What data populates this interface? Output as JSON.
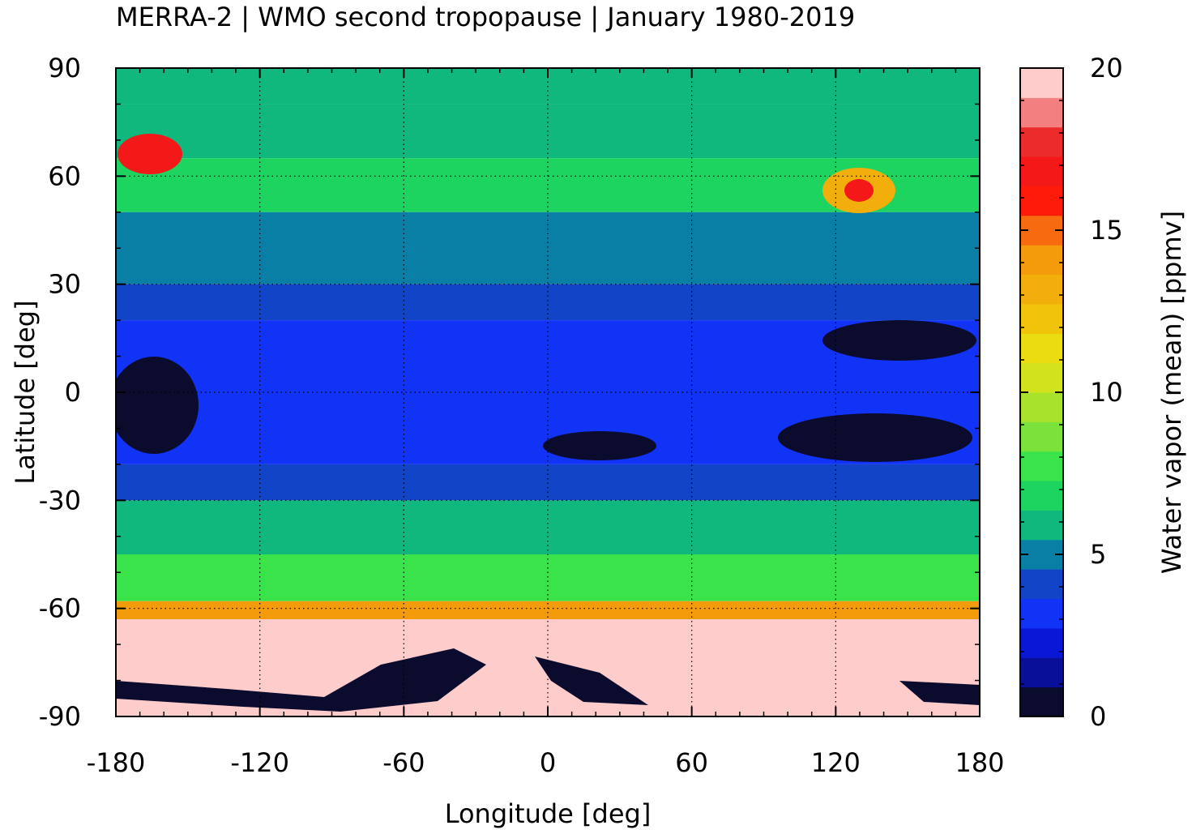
{
  "chart_data": {
    "type": "heatmap",
    "title": "MERRA-2 | WMO second tropopause | January 1980-2019",
    "xlabel": "Longitude [deg]",
    "ylabel": "Latitude [deg]",
    "colorbar_label": "Water vapor (mean) [ppmv]",
    "xlim": [
      -180,
      180
    ],
    "ylim": [
      -90,
      90
    ],
    "xticks": [
      -180,
      -120,
      -60,
      0,
      60,
      120,
      180
    ],
    "yticks": [
      -90,
      -60,
      -30,
      0,
      30,
      60,
      90
    ],
    "colorbar_ticks": [
      0,
      5,
      10,
      15,
      20
    ],
    "colorbar_range": [
      0,
      20
    ],
    "grid": true,
    "colorbar_colors": [
      "#0b0b2e",
      "#0a0f9a",
      "#0a18d6",
      "#1133f5",
      "#1244c8",
      "#0a7fa6",
      "#10b87e",
      "#1dd460",
      "#3be34a",
      "#7ae23a",
      "#a9e22c",
      "#d2e21c",
      "#eadc10",
      "#f1c40c",
      "#f2ae0a",
      "#f39b0a",
      "#f76a10",
      "#ff1a0a",
      "#f41818",
      "#ec2b2b",
      "#f28080",
      "#ffcccc"
    ],
    "bands": [
      {
        "lat": [
          80,
          90
        ],
        "value": 5.5
      },
      {
        "lat": [
          65,
          80
        ],
        "value": 6.0
      },
      {
        "lat": [
          50,
          65
        ],
        "value": 6.5
      },
      {
        "lat": [
          30,
          50
        ],
        "value": 4.8
      },
      {
        "lat": [
          20,
          30
        ],
        "value": 4.5
      },
      {
        "lat": [
          -20,
          20
        ],
        "value": 3.5
      },
      {
        "lat": [
          -30,
          -20
        ],
        "value": 4.5
      },
      {
        "lat": [
          -45,
          -30
        ],
        "value": 5.5
      },
      {
        "lat": [
          -58,
          -45
        ],
        "value": 7.5
      },
      {
        "lat": [
          -63,
          -58
        ],
        "value": 14.0
      },
      {
        "lat": [
          -90,
          -63
        ],
        "value": 20.0
      }
    ]
  }
}
